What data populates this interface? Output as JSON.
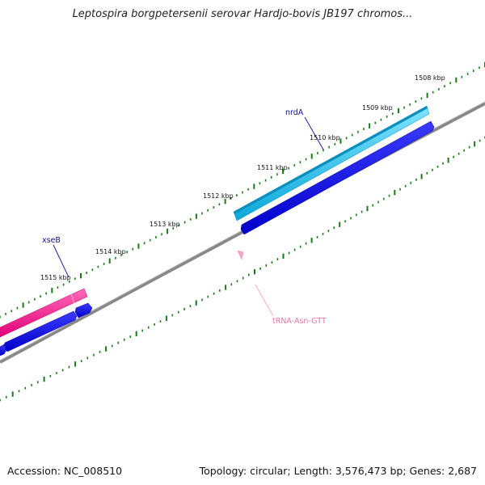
{
  "title": "Leptospira borgpetersenii serovar Hardjo-bovis JB197 chromos...",
  "footer": {
    "accession": "Accession: NC_008510",
    "stats": "Topology: circular; Length: 3,576,473 bp; Genes: 2,687"
  },
  "scale_labels": [
    "1508 kbp",
    "1509 kbp",
    "1510 kbp",
    "1511 kbp",
    "1512 kbp",
    "1513 kbp",
    "1514 kbp",
    "1515 kbp"
  ],
  "genes": [
    {
      "name": "nrdA"
    },
    {
      "name": "xseB"
    }
  ],
  "trna": {
    "name": "tRNA-Asn-GTT"
  },
  "colors": {
    "backbone": "#777777",
    "ticks": "#1a7a1a",
    "cds_forward": "#0000e6",
    "nrdA": "#1ac8f0",
    "xseB": "#ff1493",
    "trna": "#f7a3c8",
    "gene_label": "#1010a0"
  }
}
